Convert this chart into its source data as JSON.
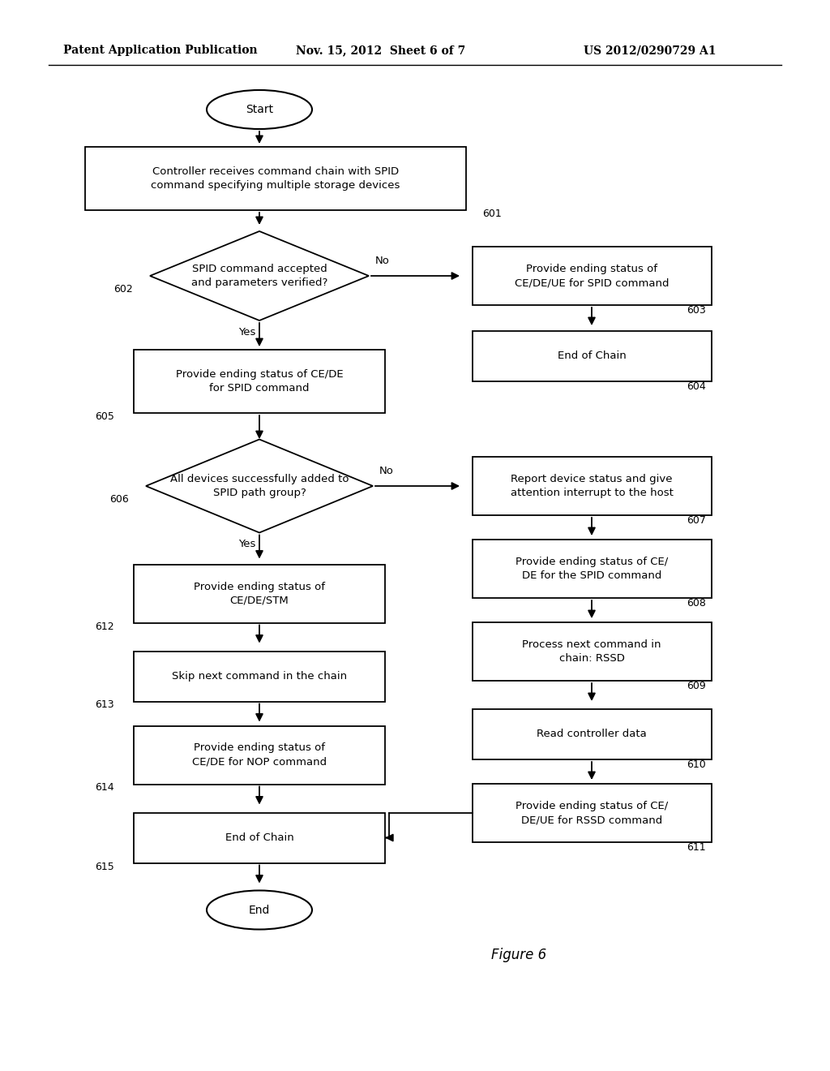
{
  "header_left": "Patent Application Publication",
  "header_mid": "Nov. 15, 2012  Sheet 6 of 7",
  "header_right": "US 2012/0290729 A1",
  "figure_label": "Figure 6",
  "bg_color": "#ffffff"
}
